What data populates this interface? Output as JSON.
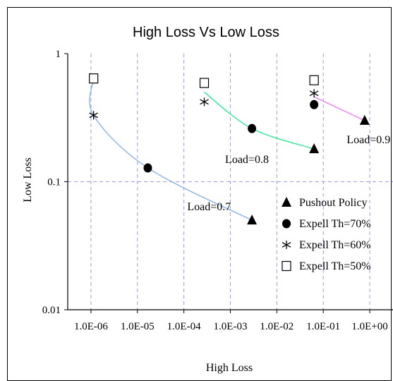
{
  "chart_data": {
    "type": "scatter",
    "title": "High Loss Vs Low Loss",
    "xlabel": "High Loss",
    "ylabel": "Low Loss",
    "x_scale": "log",
    "y_scale": "log",
    "xlim": [
      1e-06,
      1
    ],
    "ylim": [
      0.01,
      1
    ],
    "grid": true,
    "legend_position": "bottom-right",
    "x_tick_labels": [
      "1.0E-06",
      "1.0E-05",
      "1.0E-04",
      "1.0E-03",
      "1.0E-02",
      "1.0E-01",
      "1.0E+00"
    ],
    "y_tick_labels": [
      "1",
      "0.1",
      "0.01"
    ],
    "series": [
      {
        "name": "Pushout Policy",
        "marker": "triangle",
        "points": [
          [
            0.0025,
            0.05
          ],
          [
            0.035,
            0.18
          ],
          [
            0.3,
            0.3
          ]
        ]
      },
      {
        "name": "Expell Th=70%",
        "marker": "circle",
        "points": [
          [
            3e-05,
            0.128
          ],
          [
            0.0025,
            0.26
          ],
          [
            0.035,
            0.4
          ]
        ]
      },
      {
        "name": "Expell Th=60%",
        "marker": "star",
        "points": [
          [
            3e-06,
            0.33
          ],
          [
            0.00033,
            0.42
          ],
          [
            0.035,
            0.49
          ]
        ]
      },
      {
        "name": "Expell Th=50%",
        "marker": "square",
        "points": [
          [
            3e-06,
            0.64
          ],
          [
            0.00033,
            0.59
          ],
          [
            0.035,
            0.62
          ]
        ]
      }
    ],
    "curves": [
      {
        "color": "#8fb6e6",
        "points": [
          [
            3e-06,
            0.64
          ],
          [
            3e-06,
            0.33
          ],
          [
            3e-05,
            0.128
          ],
          [
            0.0025,
            0.05
          ]
        ]
      },
      {
        "color": "#3ee89a",
        "points": [
          [
            0.00033,
            0.5
          ],
          [
            0.0025,
            0.26
          ],
          [
            0.035,
            0.18
          ]
        ]
      },
      {
        "color": "#ee88ee",
        "points": [
          [
            0.035,
            0.46
          ],
          [
            0.3,
            0.3
          ]
        ]
      }
    ],
    "annotations": [
      {
        "text": "Load=0.7",
        "x": 0.00016,
        "y": 0.06
      },
      {
        "text": "Load=0.8",
        "x": 0.0008,
        "y": 0.14
      },
      {
        "text": "Load=0.9",
        "x": 0.14,
        "y": 0.2
      }
    ]
  }
}
